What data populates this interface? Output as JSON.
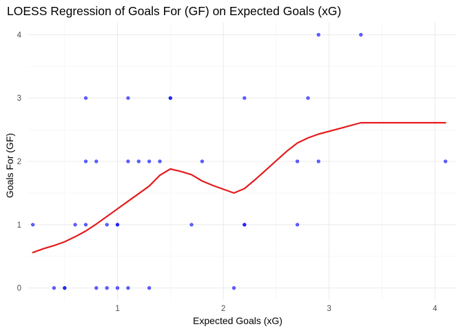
{
  "chart_data": {
    "type": "scatter",
    "title": "LOESS Regression of Goals For (GF) on Expected Goals (xG)",
    "xlabel": "Expected Goals (xG)",
    "ylabel": "Goals For (GF)",
    "xlim": [
      0.15,
      4.2
    ],
    "ylim": [
      -0.2,
      4.2
    ],
    "x_ticks": [
      1,
      2,
      3,
      4
    ],
    "y_ticks": [
      0,
      1,
      2,
      3,
      4
    ],
    "grid": true,
    "series": [
      {
        "kind": "points",
        "color": "#0000FF",
        "points": [
          {
            "x": 0.2,
            "y": 1
          },
          {
            "x": 0.6,
            "y": 1
          },
          {
            "x": 0.7,
            "y": 1
          },
          {
            "x": 0.9,
            "y": 1
          },
          {
            "x": 1.0,
            "y": 1
          },
          {
            "x": 1.0,
            "y": 1
          },
          {
            "x": 1.7,
            "y": 1
          },
          {
            "x": 2.2,
            "y": 1
          },
          {
            "x": 2.2,
            "y": 1
          },
          {
            "x": 2.7,
            "y": 1
          },
          {
            "x": 0.4,
            "y": 0
          },
          {
            "x": 0.5,
            "y": 0
          },
          {
            "x": 0.5,
            "y": 0
          },
          {
            "x": 0.8,
            "y": 0
          },
          {
            "x": 0.9,
            "y": 0
          },
          {
            "x": 1.0,
            "y": 0
          },
          {
            "x": 1.1,
            "y": 0
          },
          {
            "x": 1.3,
            "y": 0
          },
          {
            "x": 2.1,
            "y": 0
          },
          {
            "x": 0.7,
            "y": 2
          },
          {
            "x": 0.8,
            "y": 2
          },
          {
            "x": 1.1,
            "y": 2
          },
          {
            "x": 1.2,
            "y": 2
          },
          {
            "x": 1.3,
            "y": 2
          },
          {
            "x": 1.4,
            "y": 2
          },
          {
            "x": 1.8,
            "y": 2
          },
          {
            "x": 2.7,
            "y": 2
          },
          {
            "x": 2.9,
            "y": 2
          },
          {
            "x": 4.1,
            "y": 2
          },
          {
            "x": 0.7,
            "y": 3
          },
          {
            "x": 1.1,
            "y": 3
          },
          {
            "x": 1.5,
            "y": 3
          },
          {
            "x": 1.5,
            "y": 3
          },
          {
            "x": 2.2,
            "y": 3
          },
          {
            "x": 2.8,
            "y": 3
          },
          {
            "x": 2.9,
            "y": 4
          },
          {
            "x": 3.3,
            "y": 4
          }
        ]
      },
      {
        "kind": "loess-line",
        "color": "#E41A1C",
        "points": [
          {
            "x": 0.2,
            "y": 0.56
          },
          {
            "x": 0.3,
            "y": 0.62
          },
          {
            "x": 0.4,
            "y": 0.67
          },
          {
            "x": 0.5,
            "y": 0.73
          },
          {
            "x": 0.6,
            "y": 0.81
          },
          {
            "x": 0.7,
            "y": 0.9
          },
          {
            "x": 0.8,
            "y": 1.01
          },
          {
            "x": 0.9,
            "y": 1.13
          },
          {
            "x": 1.0,
            "y": 1.25
          },
          {
            "x": 1.1,
            "y": 1.37
          },
          {
            "x": 1.2,
            "y": 1.49
          },
          {
            "x": 1.3,
            "y": 1.61
          },
          {
            "x": 1.4,
            "y": 1.78
          },
          {
            "x": 1.5,
            "y": 1.88
          },
          {
            "x": 1.6,
            "y": 1.84
          },
          {
            "x": 1.7,
            "y": 1.79
          },
          {
            "x": 1.8,
            "y": 1.69
          },
          {
            "x": 1.9,
            "y": 1.62
          },
          {
            "x": 2.0,
            "y": 1.56
          },
          {
            "x": 2.1,
            "y": 1.5
          },
          {
            "x": 2.2,
            "y": 1.57
          },
          {
            "x": 2.3,
            "y": 1.71
          },
          {
            "x": 2.4,
            "y": 1.86
          },
          {
            "x": 2.5,
            "y": 2.01
          },
          {
            "x": 2.6,
            "y": 2.16
          },
          {
            "x": 2.7,
            "y": 2.29
          },
          {
            "x": 2.8,
            "y": 2.37
          },
          {
            "x": 2.9,
            "y": 2.43
          },
          {
            "x": 3.1,
            "y": 2.52
          },
          {
            "x": 3.3,
            "y": 2.61
          },
          {
            "x": 3.7,
            "y": 2.61
          },
          {
            "x": 4.1,
            "y": 2.61
          }
        ]
      }
    ]
  }
}
